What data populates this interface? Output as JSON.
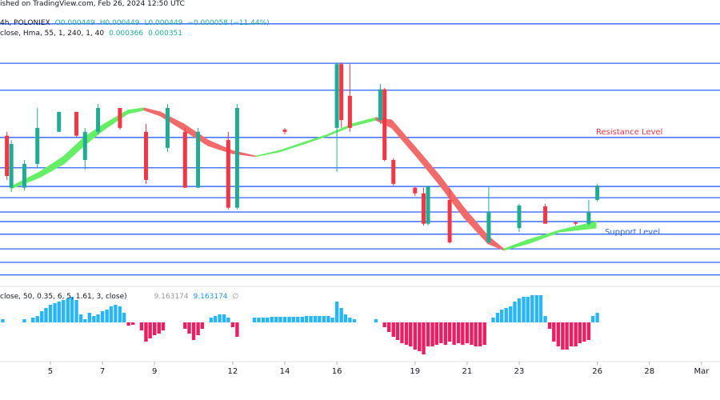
{
  "chart_data": {
    "type": "candlestick",
    "published": "ished on TradingView.com, Feb 26, 2024 12:50 UTC",
    "symbol": "4h, POLONIEX",
    "ohlc_labels": [
      "O0.000449",
      "H0.000449",
      "L0.000449",
      "−0.000058 (−11.44%)"
    ],
    "x": [
      3.33,
      3.5,
      4,
      4.5,
      5.33,
      6,
      6.33,
      6.83,
      7.67,
      8.67,
      9.5,
      10.17,
      10.67,
      11.83,
      12.17,
      14,
      16,
      16.17,
      16.5,
      17.67,
      17.83,
      18.17,
      19,
      19.33,
      19.5,
      20.33,
      21.83,
      23,
      24,
      25.17,
      25.67,
      26
    ],
    "open": [
      0.000564,
      0.000444,
      0.000444,
      0.000499,
      0.000573,
      0.000619,
      0.000508,
      0.000573,
      0.000628,
      0.000573,
      0.000536,
      0.000573,
      0.000444,
      0.000554,
      0.000398,
      0.000578,
      0.000582,
      0.000729,
      0.000656,
      0.0006,
      0.000671,
      0.000508,
      0.000444,
      0.000431,
      0.000361,
      0.000416,
      0.000318,
      0.000351,
      0.000401,
      0.000364,
      0.000361,
      0.000416
    ],
    "high": [
      0.000573,
      0.000554,
      0.000508,
      0.000628,
      0.000619,
      0.000619,
      0.000582,
      0.000637,
      0.000628,
      0.000591,
      0.000637,
      0.000582,
      0.000582,
      0.000573,
      0.000637,
      0.000582,
      0.000733,
      0.000733,
      0.000729,
      0.000683,
      0.000674,
      0.000512,
      0.000447,
      0.000444,
      0.000449,
      0.000444,
      0.000447,
      0.000407,
      0.000407,
      0.000366,
      0.000416,
      0.000453
    ],
    "low": [
      0.000462,
      0.000434,
      0.000438,
      0.00049,
      0.000573,
      0.00056,
      0.000486,
      0.000567,
      0.000578,
      0.000453,
      0.000527,
      0.000444,
      0.000444,
      0.000394,
      0.000394,
      0.000567,
      0.000481,
      0.000582,
      0.000573,
      0.000591,
      0.000505,
      0.000449,
      0.000425,
      0.000357,
      0.000357,
      0.000315,
      0.000315,
      0.000342,
      0.000361,
      0.000357,
      0.000357,
      0.000412
    ],
    "close": [
      0.000471,
      0.000545,
      0.000499,
      0.000582,
      0.000619,
      0.000564,
      0.000573,
      0.000628,
      0.000582,
      0.000462,
      0.000628,
      0.000444,
      0.000573,
      0.000398,
      0.000628,
      0.000573,
      0.000729,
      0.0006,
      0.000582,
      0.000671,
      0.000508,
      0.000453,
      0.000431,
      0.000361,
      0.000447,
      0.000318,
      0.000388,
      0.000403,
      0.000361,
      0.000361,
      0.000388,
      0.000449
    ],
    "up_color": "#22ab94",
    "down_color": "#f23645",
    "xlim": [
      3.065,
      30.71
    ],
    "xticks": [
      5,
      7,
      9,
      12,
      14,
      16,
      19,
      21,
      23,
      26,
      28,
      {
        "value": 30,
        "label": "Mar"
      }
    ],
    "ylim": [
      0.000222,
      0.000877
    ],
    "levels": {
      "color": "#2962ff",
      "values": [
        0.000822,
        0.000731,
        0.000669,
        0.00056,
        0.00049,
        0.000447,
        0.000421,
        0.000388,
        0.000366,
        0.000337,
        0.000303,
        0.000272,
        0.000243
      ]
    },
    "annotations": [
      {
        "text": "Resistance Level",
        "color": "#f23645"
      },
      {
        "text": "Support Level",
        "color": "#2962ff"
      }
    ],
    "hma": {
      "legend": "close, Hma, 55, 1, 240, 1, 40",
      "legend_values": [
        "0.000366",
        "0.000351"
      ],
      "up_color": "#66ee66",
      "down_color": "#f26b6b",
      "x": [
        3.5,
        4.6,
        5.52,
        6.29,
        7.06,
        7.98,
        8.59,
        9.21,
        10.13,
        11.05,
        11.97,
        12.89,
        13.81,
        14.74,
        15.66,
        16.58,
        17.5,
        18.11,
        19.04,
        19.96,
        20.88,
        21.8,
        22.41,
        23.34,
        24.56,
        25.95
      ],
      "upper": [
        0.000447,
        0.000481,
        0.000517,
        0.00056,
        0.000591,
        0.000623,
        0.000628,
        0.000619,
        0.000591,
        0.000554,
        0.00053,
        0.000517,
        0.00053,
        0.000549,
        0.000567,
        0.000591,
        0.000606,
        0.0006,
        0.000536,
        0.000471,
        0.000398,
        0.000333,
        0.000303,
        0.000324,
        0.000346,
        0.000366
      ],
      "lower": [
        0.000442,
        0.000468,
        0.000499,
        0.000541,
        0.000578,
        0.000615,
        0.000623,
        0.00061,
        0.000576,
        0.000541,
        0.000523,
        0.000516,
        0.000527,
        0.000545,
        0.000564,
        0.000586,
        0.0006,
        0.000582,
        0.000517,
        0.000449,
        0.000375,
        0.000315,
        0.0003,
        0.000315,
        0.000342,
        0.000351
      ]
    },
    "oscillator": {
      "legend": "close, 50, 0.35, 6, 5, 1.61, 3, close)",
      "legend_values": [
        "9.163174",
        "9.163174",
        "∅"
      ],
      "pos_color": "#29b6f6",
      "neg_color": "#e91e63",
      "ylim": [
        -42,
        38
      ],
      "x": [
        3.17,
        4,
        4.33,
        4.5,
        4.67,
        4.83,
        5,
        5.17,
        5.33,
        5.5,
        5.67,
        5.83,
        6,
        6.17,
        6.33,
        6.5,
        6.67,
        6.83,
        7,
        7.17,
        7.33,
        7.5,
        7.67,
        7.83,
        8,
        8.17,
        8.5,
        8.67,
        8.83,
        9,
        9.17,
        9.33,
        10.17,
        10.33,
        10.5,
        10.67,
        10.83,
        11.17,
        11.33,
        11.5,
        11.67,
        11.83,
        12,
        12.17,
        12.83,
        13,
        13.17,
        13.33,
        13.5,
        13.67,
        13.83,
        14,
        14.17,
        14.33,
        14.5,
        14.67,
        14.83,
        15,
        15.17,
        15.33,
        15.5,
        15.67,
        15.83,
        16,
        16.17,
        16.33,
        16.5,
        16.67,
        17.5,
        17.83,
        18,
        18.17,
        18.33,
        18.5,
        18.67,
        18.83,
        19,
        19.17,
        19.33,
        19.5,
        19.67,
        19.83,
        20,
        20.17,
        20.33,
        20.5,
        20.67,
        20.83,
        21,
        21.17,
        21.33,
        21.5,
        21.67,
        22,
        22.17,
        22.33,
        22.5,
        22.67,
        22.83,
        23,
        23.17,
        23.33,
        23.5,
        23.67,
        23.83,
        24,
        24.17,
        24.33,
        24.5,
        24.67,
        24.83,
        25,
        25.17,
        25.33,
        25.5,
        25.67,
        25.83,
        26
      ],
      "values": [
        4,
        4,
        6,
        8,
        14,
        18,
        22,
        24,
        26,
        28,
        30,
        32,
        28,
        10,
        4,
        12,
        8,
        10,
        14,
        16,
        20,
        22,
        20,
        12,
        -4,
        -3,
        -10,
        -24,
        -20,
        -16,
        -14,
        -10,
        -8,
        -14,
        -22,
        -16,
        -8,
        6,
        8,
        10,
        10,
        6,
        -6,
        -18,
        6,
        6,
        6,
        6,
        7,
        7,
        7,
        7,
        7,
        7,
        7,
        7,
        8,
        8,
        8,
        8,
        8,
        8,
        6,
        26,
        18,
        10,
        6,
        4,
        4,
        -6,
        -12,
        -18,
        -22,
        -26,
        -28,
        -30,
        -34,
        -36,
        -40,
        -30,
        -30,
        -28,
        -26,
        -28,
        -24,
        -28,
        -26,
        -28,
        -26,
        -28,
        -30,
        -30,
        -28,
        6,
        12,
        16,
        18,
        20,
        26,
        30,
        32,
        32,
        34,
        34,
        34,
        8,
        -8,
        -24,
        -30,
        -34,
        -34,
        -30,
        -30,
        -26,
        -24,
        -22,
        8,
        12
      ]
    }
  }
}
